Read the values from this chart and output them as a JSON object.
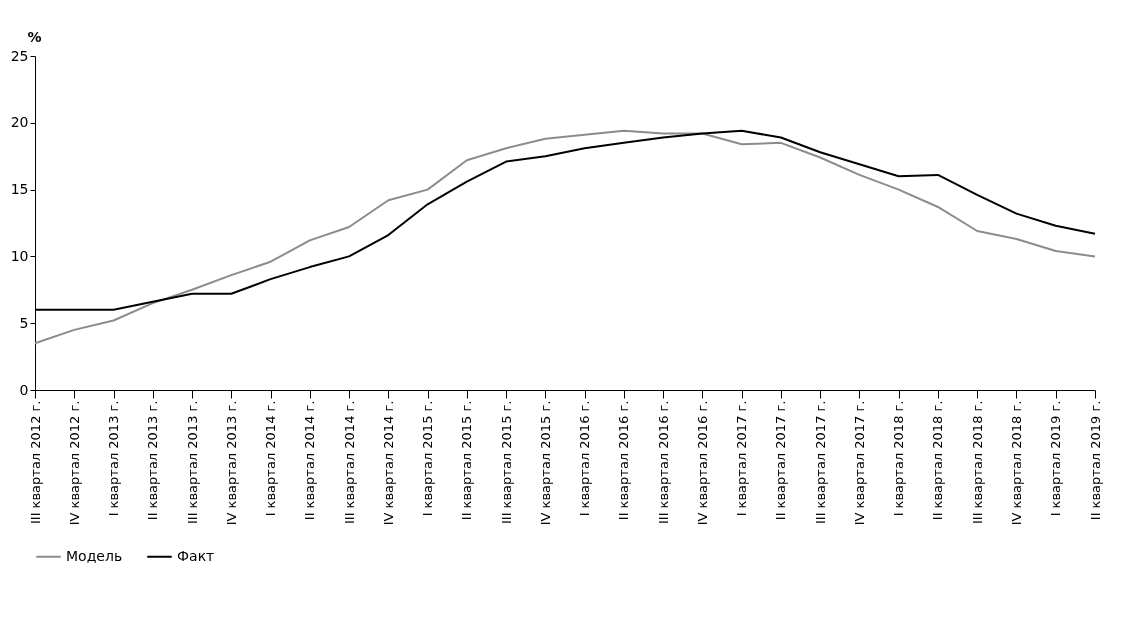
{
  "chart_data": {
    "type": "line",
    "ylabel": "%",
    "categories": [
      "III квартал 2012 г.",
      "IV квартал 2012 г.",
      "I квартал 2013 г.",
      "II квартал 2013 г.",
      "III квартал 2013 г.",
      "IV квартал 2013 г.",
      "I квартал 2014 г.",
      "II квартал 2014 г.",
      "III квартал 2014 г.",
      "IV квартал 2014 г.",
      "I квартал 2015 г.",
      "II квартал 2015 г.",
      "III квартал 2015 г.",
      "IV квартал 2015 г.",
      "I квартал 2016 г.",
      "II квартал 2016 г.",
      "III квартал 2016 г.",
      "IV квартал 2016 г.",
      "I квартал 2017 г.",
      "II квартал 2017 г.",
      "III квартал 2017 г.",
      "IV квартал 2017 г.",
      "I квартал 2018 г.",
      "II квартал 2018 г.",
      "III квартал 2018 г.",
      "IV квартал 2018 г.",
      "I квартал 2019 г.",
      "II квартал 2019 г."
    ],
    "series": [
      {
        "name": "Модель",
        "color": "#8c8c8c",
        "values": [
          3.5,
          4.5,
          5.2,
          6.5,
          7.5,
          8.6,
          9.6,
          11.2,
          12.2,
          14.2,
          15.0,
          17.2,
          18.1,
          18.8,
          19.1,
          19.4,
          19.2,
          19.2,
          18.4,
          18.5,
          17.4,
          16.1,
          15.0,
          13.7,
          11.9,
          11.3,
          10.4,
          10.0
        ]
      },
      {
        "name": "Факт",
        "color": "#000000",
        "values": [
          6.0,
          6.0,
          6.0,
          6.6,
          7.2,
          7.2,
          8.3,
          9.2,
          10.0,
          11.6,
          13.9,
          15.6,
          17.1,
          17.5,
          18.1,
          18.5,
          18.9,
          19.2,
          19.4,
          18.9,
          17.8,
          16.9,
          16.0,
          16.1,
          14.6,
          13.2,
          12.3,
          11.7
        ]
      }
    ],
    "ylim": [
      0,
      25
    ],
    "yticks": [
      0,
      5,
      10,
      15,
      20,
      25
    ],
    "grid": false,
    "legend": "bottom",
    "marker": "none",
    "line_style": "solid"
  }
}
